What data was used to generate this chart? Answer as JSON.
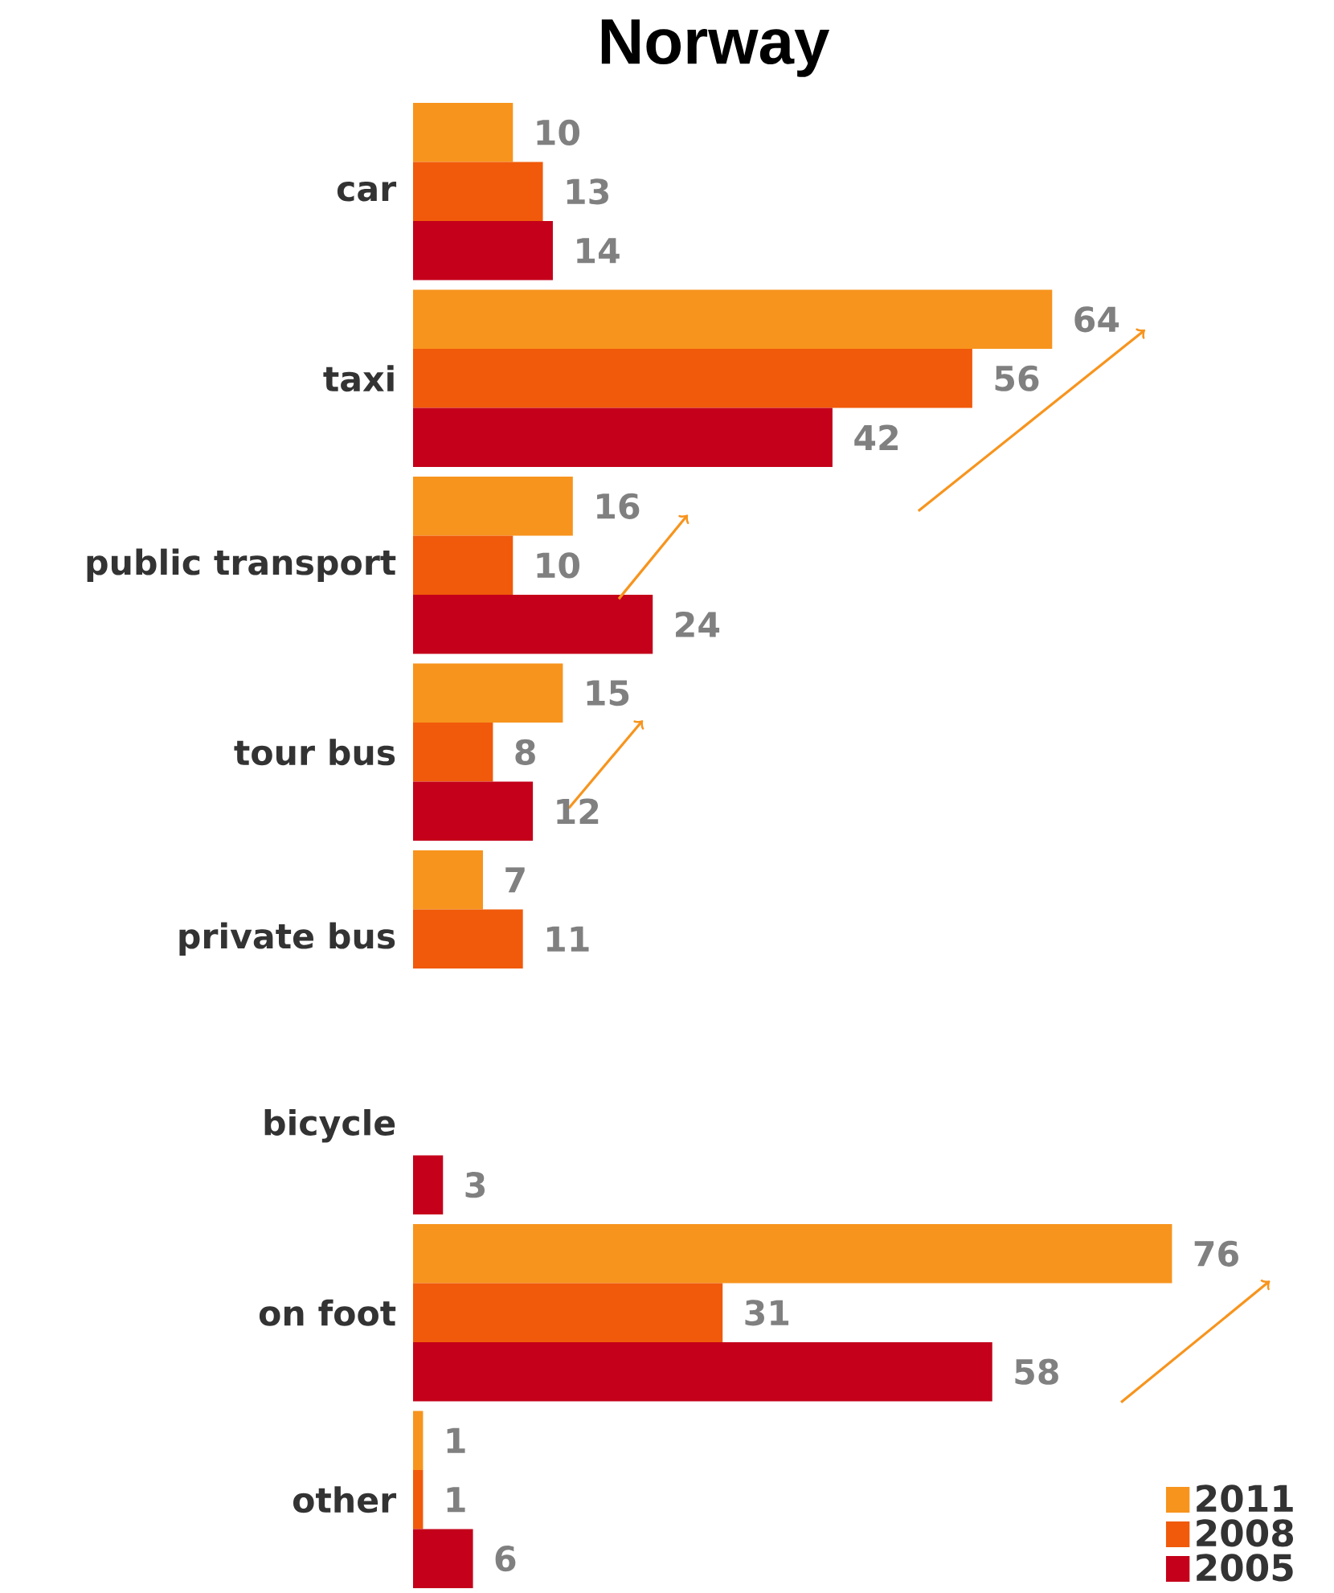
{
  "chart_data": {
    "type": "bar",
    "orientation": "horizontal",
    "title": "Norway",
    "categories": [
      "car",
      "taxi",
      "public transport",
      "tour bus",
      "private bus",
      "bicycle",
      "on foot",
      "other"
    ],
    "series": [
      {
        "name": "2011",
        "color": "#f7941d",
        "values": [
          10,
          64,
          16,
          15,
          7,
          null,
          76,
          1
        ]
      },
      {
        "name": "2008",
        "color": "#f05a0a",
        "values": [
          13,
          56,
          10,
          8,
          11,
          null,
          31,
          1
        ]
      },
      {
        "name": "2005",
        "color": "#c4001a",
        "values": [
          14,
          42,
          24,
          12,
          null,
          3,
          58,
          6
        ]
      }
    ],
    "data_labels": true,
    "legend": "bottom right"
  }
}
